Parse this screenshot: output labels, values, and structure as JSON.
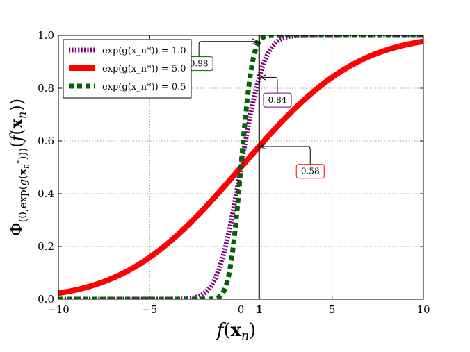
{
  "chart_data": {
    "type": "line",
    "xlabel": "f(x_n)",
    "ylabel": "Φ_(0,exp(g(x_n*)))(f(x_n))",
    "xlim": [
      -10,
      10
    ],
    "ylim": [
      0.0,
      1.0
    ],
    "grid": true,
    "legend_position": "top-left",
    "xticks": [
      -10,
      -5,
      0,
      5,
      10
    ],
    "xtick_labels": [
      "−10",
      "−5",
      "0",
      "5",
      "10"
    ],
    "extra_xtick": {
      "value": 1,
      "label": "1"
    },
    "yticks": [
      0.0,
      0.2,
      0.4,
      0.6,
      0.8,
      1.0
    ],
    "ytick_labels": [
      "0.0",
      "0.2",
      "0.4",
      "0.6",
      "0.8",
      "1.0"
    ],
    "vertical_line_x": 1,
    "series": [
      {
        "name": "exp(g(x_n*)) = 1.0",
        "scale": 1.0,
        "color": "#800080",
        "style": "dotted"
      },
      {
        "name": "exp(g(x_n*)) = 5.0",
        "scale": 5.0,
        "color": "#ff0000",
        "style": "solid"
      },
      {
        "name": "exp(g(x_n*)) = 0.5",
        "scale": 0.5,
        "color": "#006400",
        "style": "dashed"
      }
    ],
    "annotations": [
      {
        "text": "0.98",
        "x": 1,
        "y": 0.977,
        "color": "#006400"
      },
      {
        "text": "0.84",
        "x": 1,
        "y": 0.841,
        "color": "#800080"
      },
      {
        "text": "0.58",
        "x": 1,
        "y": 0.579,
        "color": "#ff0000"
      }
    ]
  }
}
